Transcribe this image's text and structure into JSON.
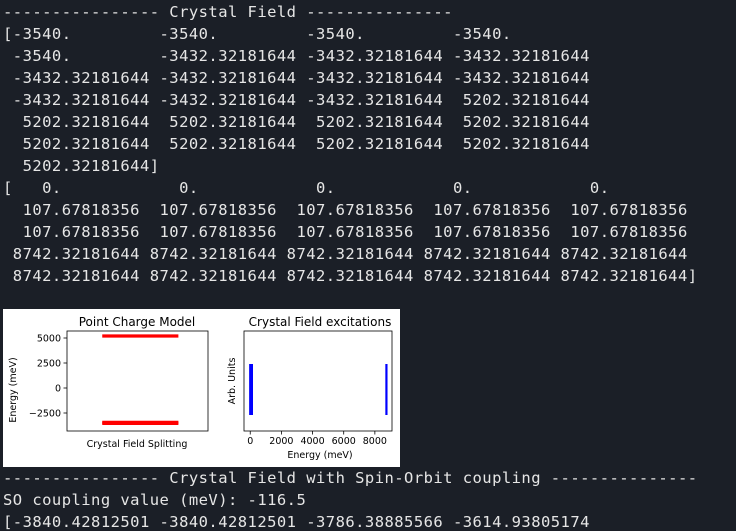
{
  "console": {
    "top_lines": [
      "---------------- Crystal Field ---------------",
      "[-3540.         -3540.         -3540.         -3540.",
      " -3540.         -3432.32181644 -3432.32181644 -3432.32181644",
      " -3432.32181644 -3432.32181644 -3432.32181644 -3432.32181644",
      " -3432.32181644 -3432.32181644 -3432.32181644  5202.32181644",
      "  5202.32181644  5202.32181644  5202.32181644  5202.32181644",
      "  5202.32181644  5202.32181644  5202.32181644  5202.32181644",
      "  5202.32181644]",
      "[   0.            0.            0.            0.            0.",
      "  107.67818356  107.67818356  107.67818356  107.67818356  107.67818356",
      "  107.67818356  107.67818356  107.67818356  107.67818356  107.67818356",
      " 8742.32181644 8742.32181644 8742.32181644 8742.32181644 8742.32181644",
      " 8742.32181644 8742.32181644 8742.32181644 8742.32181644 8742.32181644]"
    ],
    "bottom_lines": [
      "---------------- Crystal Field with Spin-Orbit coupling ---------------",
      "SO coupling value (meV): -116.5",
      "[-3840.42812501 -3840.42812501 -3786.38885566 -3614.93805174"
    ]
  },
  "chart_data": [
    {
      "type": "line",
      "title": "Point Charge Model",
      "xlabel": "Crystal Field Splitting",
      "ylabel": "Energy (meV)",
      "yticks": [
        5000,
        2500,
        0,
        -2500
      ],
      "ytick_labels": [
        "5000",
        "2500",
        "0",
        "−2500"
      ],
      "ylim": [
        -4300,
        5700
      ],
      "levels": [
        5202.32181644,
        -3432.32181644,
        -3540
      ],
      "color": "#ff0000"
    },
    {
      "type": "bar",
      "title": "Crystal Field excitations",
      "xlabel": "Energy (meV)",
      "ylabel": "Arb. Units",
      "xticks": [
        0,
        2000,
        4000,
        6000,
        8000
      ],
      "xtick_labels": [
        "0",
        "2000",
        "4000",
        "6000",
        "8000"
      ],
      "xlim": [
        -400,
        9100
      ],
      "peaks": [
        0,
        107.67818356,
        8742.32181644
      ],
      "color": "#0000ff"
    }
  ]
}
